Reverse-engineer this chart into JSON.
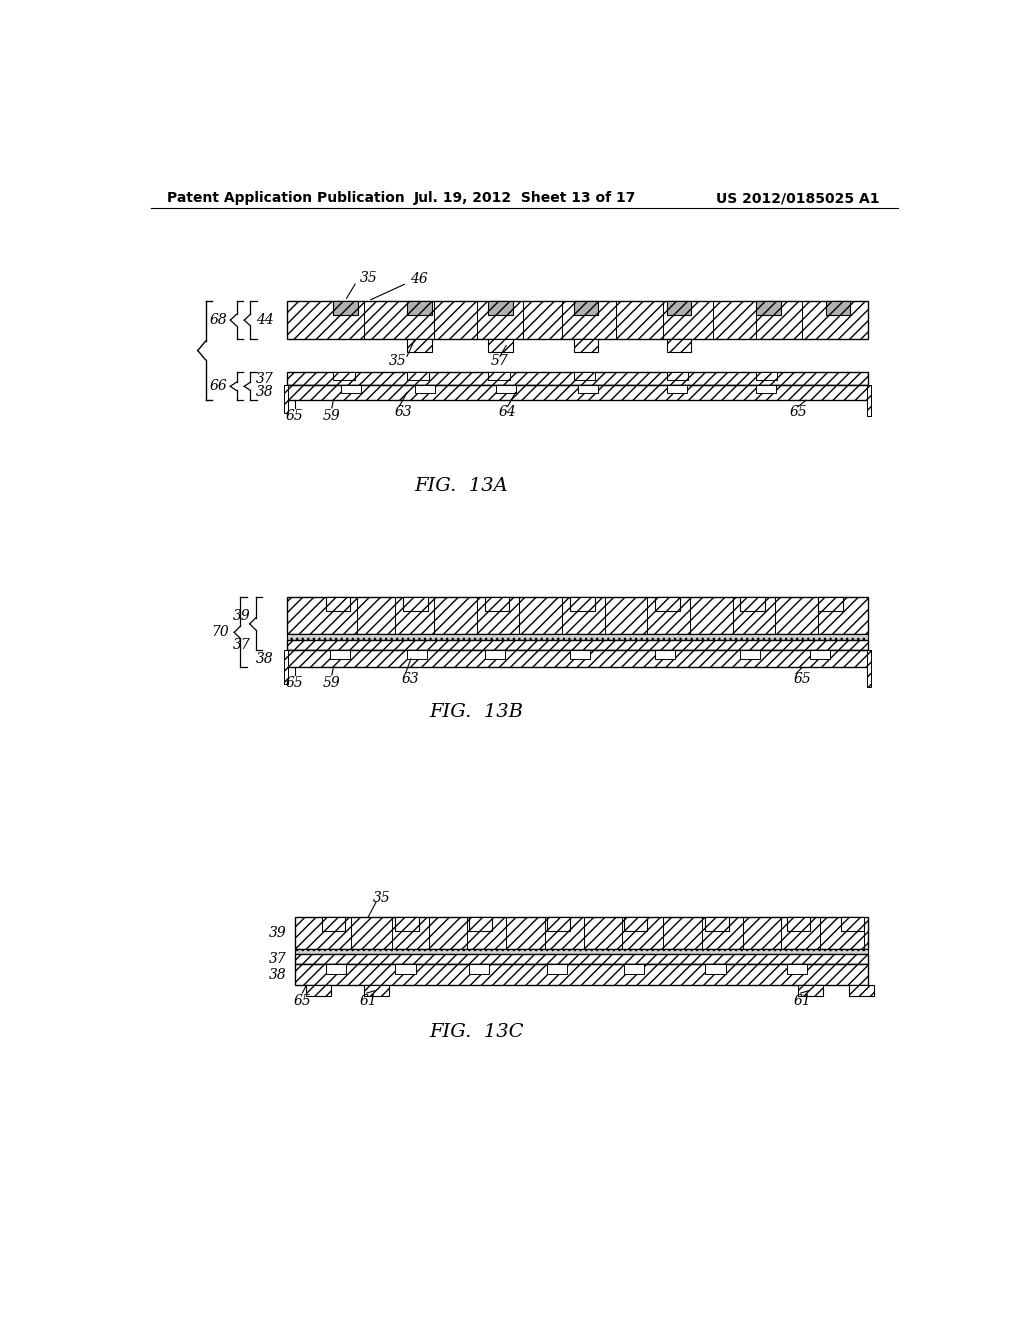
{
  "header_left": "Patent Application Publication",
  "header_mid": "Jul. 19, 2012  Sheet 13 of 17",
  "header_right": "US 2012/0185025 A1",
  "fig13a_label": "FIG.  13A",
  "fig13b_label": "FIG.  13B",
  "fig13c_label": "FIG.  13C",
  "bg_color": "#ffffff",
  "hatch_color": "#000000",
  "line_color": "#000000",
  "hatch_pattern": "///",
  "label_fontsize": 10,
  "header_fontsize": 10,
  "fig_label_fontsize": 14
}
